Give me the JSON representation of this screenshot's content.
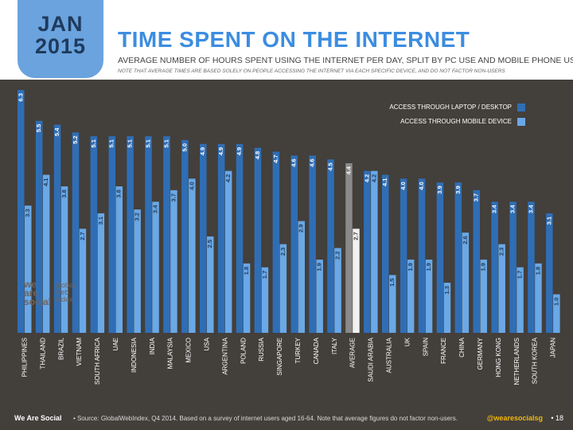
{
  "badge": {
    "month": "JAN",
    "year": "2015"
  },
  "title": "TIME SPENT ON THE INTERNET",
  "subtitle": "AVERAGE NUMBER OF HOURS SPENT USING THE INTERNET PER DAY, SPLIT BY PC USE AND MOBILE PHONE USE",
  "note": "NOTE THAT AVERAGE TIMES ARE BASED SOLELY ON PEOPLE ACCESSING THE INTERNET VIA EACH SPECIFIC DEVICE, AND DO NOT FACTOR NON-USERS",
  "footer": {
    "brand": "We Are Social",
    "source": "• Source: GlobalWebIndex, Q4 2014. Based on a survey of internet users aged 16-64. Note that average figures do not factor non-users.",
    "handle": "@wearesocialsg",
    "page": "• 18"
  },
  "logos": {
    "we_are_social": "we are social",
    "gwi": "global web index"
  },
  "colors": {
    "laptop": "#2f6eb5",
    "mobile": "#6aa8e6",
    "avg_laptop": "#8a8a8a",
    "avg_mobile": "#f2f2f2",
    "background": "#433f3b"
  },
  "chart_data": {
    "type": "bar",
    "categories": [
      "PHILIPPINES",
      "THAILAND",
      "BRAZIL",
      "VIETNAM",
      "SOUTH AFRICA",
      "UAE",
      "INDONESIA",
      "INDIA",
      "MALAYSIA",
      "MEXICO",
      "USA",
      "ARGENTINA",
      "POLAND",
      "RUSSIA",
      "SINGAPORE",
      "TURKEY",
      "CANADA",
      "ITALY",
      "AVERAGE",
      "SAUDI ARABIA",
      "AUSTRALIA",
      "UK",
      "SPAIN",
      "FRANCE",
      "CHINA",
      "GERMANY",
      "HONG KONG",
      "NETHERLANDS",
      "SOUTH KOREA",
      "JAPAN"
    ],
    "series": [
      {
        "name": "ACCESS THROUGH LAPTOP / DESKTOP",
        "values": [
          6.3,
          5.5,
          5.4,
          5.2,
          5.1,
          5.1,
          5.1,
          5.1,
          5.1,
          5.0,
          4.9,
          4.9,
          4.9,
          4.8,
          4.7,
          4.6,
          4.6,
          4.5,
          4.4,
          4.2,
          4.1,
          4.0,
          4.0,
          3.9,
          3.9,
          3.7,
          3.4,
          3.4,
          3.4,
          3.1
        ]
      },
      {
        "name": "ACCESS THROUGH MOBILE DEVICE",
        "values": [
          3.3,
          4.1,
          3.8,
          2.7,
          3.1,
          3.8,
          3.2,
          3.4,
          3.7,
          4.0,
          2.5,
          4.2,
          1.8,
          1.7,
          2.3,
          2.9,
          1.9,
          2.2,
          2.7,
          4.2,
          1.5,
          1.9,
          1.9,
          1.3,
          2.6,
          1.9,
          2.3,
          1.7,
          1.8,
          1.0
        ]
      }
    ],
    "highlight_category": "AVERAGE",
    "ylim": [
      0,
      6.3
    ],
    "legend_position": "top-right"
  }
}
